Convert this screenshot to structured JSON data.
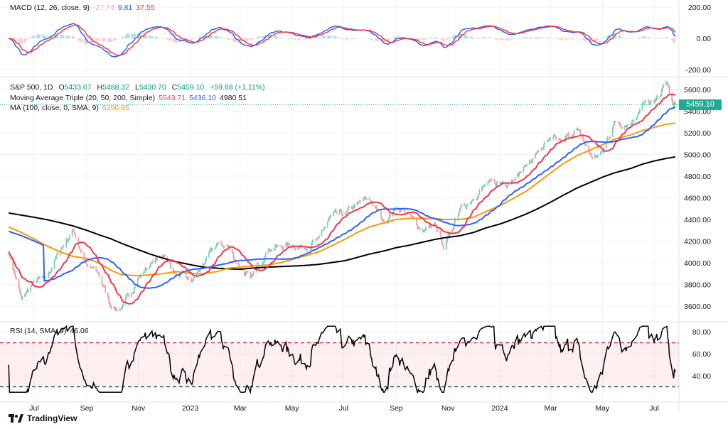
{
  "macd_legend": {
    "title": "MACD (12, 26, close, 9)",
    "histogram": "-27.74",
    "macd": "9.81",
    "signal": "37.55"
  },
  "price_legend": {
    "title": "S&P 500, 1D",
    "open_label": "O",
    "open": "5433.67",
    "high_label": "H",
    "high": "5488.32",
    "low_label": "L",
    "low": "5430.70",
    "close_label": "C",
    "close": "5459.10",
    "change": "+59.88 (+1.11%)"
  },
  "ma_triple_legend": {
    "title": "Moving Average Triple (20, 50, 200, Simple)",
    "ma20": "5543.71",
    "ma50": "5436.10",
    "ma200": "4980.51"
  },
  "ma100_legend": {
    "title": "MA (100, close, 0, SMA, 9)",
    "value": "5290.95"
  },
  "rsi_legend": {
    "title": "RSI (14, SMA, 9)",
    "value": "46.06"
  },
  "last_price": "5459.10",
  "branding": "TradingView",
  "colors": {
    "up": "#26a69a",
    "down": "#ef5350",
    "ma20": "#f23645",
    "ma50": "#2962ff",
    "ma100": "#ff9800",
    "ma200": "#000000",
    "macd": "#2962ff",
    "signal": "#f23645",
    "rsi": "#000000",
    "last_price_bg": "#22ab94"
  },
  "chart_data": [
    {
      "type": "line",
      "pane": "MACD",
      "yticks": [
        "200.00",
        "0.00",
        "-200.00"
      ],
      "ytick_values": [
        200,
        0,
        -200
      ],
      "params": {
        "fast": 12,
        "slow": 26,
        "signal": 9
      }
    },
    {
      "type": "candlestick",
      "pane": "price",
      "interval": "1D",
      "yticks": [
        "5600.00",
        "5400.00",
        "5200.00",
        "5000.00",
        "4800.00",
        "4600.00",
        "4400.00",
        "4200.00",
        "4000.00",
        "3800.00",
        "3600.00"
      ],
      "ytick_values": [
        5600,
        5400,
        5200,
        5000,
        4800,
        4600,
        4400,
        4200,
        4000,
        3800,
        3600
      ],
      "xticks": [
        "Jul",
        "Sep",
        "Nov",
        "2023",
        "Mar",
        "May",
        "Jul",
        "Sep",
        "Nov",
        "2024",
        "Mar",
        "May",
        "Jul"
      ],
      "xtick_dates": [
        "2022-07-01",
        "2022-09-01",
        "2022-11-01",
        "2023-01-01",
        "2023-03-01",
        "2023-05-01",
        "2023-07-01",
        "2023-09-01",
        "2023-11-01",
        "2024-01-01",
        "2024-03-01",
        "2024-05-01",
        "2024-07-01"
      ],
      "points": [
        [
          "2022-06-01",
          4100,
          4330,
          4460
        ],
        [
          "2022-06-16",
          3666,
          4280,
          4440
        ],
        [
          "2022-07-01",
          3825,
          4220,
          4420
        ],
        [
          "2022-07-15",
          3860,
          4160,
          4400
        ],
        [
          "2022-08-01",
          4120,
          4100,
          4370
        ],
        [
          "2022-08-16",
          4305,
          4060,
          4340
        ],
        [
          "2022-09-01",
          3970,
          4040,
          4300
        ],
        [
          "2022-09-15",
          3900,
          4000,
          4260
        ],
        [
          "2022-09-30",
          3585,
          3930,
          4220
        ],
        [
          "2022-10-12",
          3577,
          3890,
          4180
        ],
        [
          "2022-11-01",
          3860,
          3880,
          4120
        ],
        [
          "2022-11-15",
          3990,
          3890,
          4080
        ],
        [
          "2022-12-01",
          4075,
          3900,
          4040
        ],
        [
          "2022-12-15",
          3895,
          3920,
          4010
        ],
        [
          "2023-01-03",
          3825,
          3900,
          3980
        ],
        [
          "2023-01-17",
          3990,
          3900,
          3960
        ],
        [
          "2023-02-02",
          4180,
          3920,
          3950
        ],
        [
          "2023-02-15",
          4150,
          3950,
          3945
        ],
        [
          "2023-03-01",
          3950,
          3960,
          3940
        ],
        [
          "2023-03-13",
          3855,
          3970,
          3950
        ],
        [
          "2023-04-03",
          4125,
          3980,
          3960
        ],
        [
          "2023-04-17",
          4150,
          4000,
          3965
        ],
        [
          "2023-05-01",
          4165,
          4030,
          3970
        ],
        [
          "2023-05-15",
          4135,
          4060,
          3975
        ],
        [
          "2023-06-01",
          4220,
          4100,
          3985
        ],
        [
          "2023-06-15",
          4425,
          4150,
          4000
        ],
        [
          "2023-07-03",
          4455,
          4220,
          4020
        ],
        [
          "2023-07-17",
          4550,
          4280,
          4050
        ],
        [
          "2023-07-31",
          4590,
          4330,
          4080
        ],
        [
          "2023-08-18",
          4370,
          4370,
          4110
        ],
        [
          "2023-09-01",
          4515,
          4400,
          4140
        ],
        [
          "2023-09-15",
          4450,
          4410,
          4160
        ],
        [
          "2023-10-02",
          4290,
          4410,
          4190
        ],
        [
          "2023-10-16",
          4370,
          4410,
          4215
        ],
        [
          "2023-10-27",
          4117,
          4400,
          4230
        ],
        [
          "2023-11-15",
          4500,
          4400,
          4250
        ],
        [
          "2023-12-01",
          4595,
          4420,
          4280
        ],
        [
          "2023-12-15",
          4720,
          4470,
          4320
        ],
        [
          "2024-01-02",
          4740,
          4530,
          4360
        ],
        [
          "2024-01-16",
          4765,
          4590,
          4400
        ],
        [
          "2024-02-01",
          4900,
          4660,
          4450
        ],
        [
          "2024-02-15",
          5030,
          4740,
          4500
        ],
        [
          "2024-03-01",
          5140,
          4830,
          4560
        ],
        [
          "2024-03-15",
          5120,
          4910,
          4620
        ],
        [
          "2024-04-01",
          5240,
          4990,
          4690
        ],
        [
          "2024-04-19",
          4967,
          5050,
          4750
        ],
        [
          "2024-05-01",
          5020,
          5090,
          4790
        ],
        [
          "2024-05-15",
          5300,
          5140,
          4830
        ],
        [
          "2024-06-03",
          5280,
          5180,
          4870
        ],
        [
          "2024-06-17",
          5470,
          5220,
          4910
        ],
        [
          "2024-07-01",
          5475,
          5250,
          4940
        ],
        [
          "2024-07-16",
          5667,
          5280,
          4965
        ],
        [
          "2024-07-24",
          5427,
          5288,
          4975
        ],
        [
          "2024-07-26",
          5459.1,
          5290.95,
          4980.51
        ]
      ],
      "point_fields": [
        "date",
        "close",
        "ma100",
        "ma200"
      ]
    },
    {
      "type": "line",
      "pane": "RSI",
      "yticks": [
        "80.00",
        "60.00",
        "40.00"
      ],
      "ytick_values": [
        80,
        60,
        40
      ],
      "bands": [
        70,
        30
      ],
      "period": 14
    }
  ]
}
